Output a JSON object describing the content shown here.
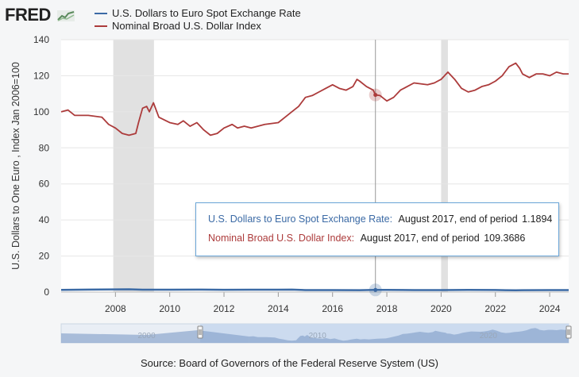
{
  "header": {
    "logo_text": "FRED",
    "logo_icon": "chart-line-icon"
  },
  "legend": [
    {
      "label": "U.S. Dollars to Euro Spot Exchange Rate",
      "color": "#3b6aa5"
    },
    {
      "label": "Nominal Broad U.S. Dollar Index",
      "color": "#ac3b3b"
    }
  ],
  "tooltip": {
    "series1_name": "U.S. Dollars to Euro Spot Exchange Rate:",
    "series1_desc": "August 2017, end of period",
    "series1_value": "1.1894",
    "series2_name": "Nominal Broad U.S. Dollar Index:",
    "series2_desc": "August 2017, end of period",
    "series2_value": "109.3686"
  },
  "source": "Source: Board of Governors of the Federal Reserve System (US)",
  "chart_data": {
    "type": "line",
    "xlabel": "",
    "ylabel": "U.S. Dollars to One Euro , Index Jan 2006=100",
    "ylim": [
      0,
      140
    ],
    "yticks": [
      0,
      20,
      40,
      60,
      80,
      100,
      120,
      140
    ],
    "xlim": [
      2006.0,
      2024.7
    ],
    "xticks": [
      "2008",
      "2010",
      "2012",
      "2014",
      "2016",
      "2018",
      "2020",
      "2022",
      "2024"
    ],
    "grid": true,
    "legend_position": "top-left",
    "recessions": [
      [
        2007.92,
        2009.42
      ],
      [
        2020.0,
        2020.25
      ]
    ],
    "highlight": {
      "x": 2017.58,
      "label": "August 2017"
    },
    "navigator_labels": [
      "2000",
      "2010",
      "2020"
    ],
    "series": [
      {
        "name": "U.S. Dollars to Euro Spot Exchange Rate",
        "color": "#3b6aa5",
        "x": [
          2006.0,
          2007.0,
          2008.0,
          2008.5,
          2009.0,
          2010.0,
          2011.0,
          2012.0,
          2013.0,
          2014.0,
          2014.5,
          2015.0,
          2016.0,
          2017.0,
          2017.58,
          2018.0,
          2019.0,
          2020.0,
          2021.0,
          2022.0,
          2022.75,
          2023.0,
          2024.0,
          2024.7
        ],
        "values": [
          1.2,
          1.37,
          1.47,
          1.56,
          1.3,
          1.33,
          1.39,
          1.29,
          1.33,
          1.33,
          1.36,
          1.11,
          1.1,
          1.06,
          1.19,
          1.23,
          1.12,
          1.12,
          1.22,
          1.13,
          0.98,
          1.07,
          1.09,
          1.1
        ]
      },
      {
        "name": "Nominal Broad U.S. Dollar Index",
        "color": "#ac3b3b",
        "x": [
          2006.0,
          2006.25,
          2006.5,
          2007.0,
          2007.5,
          2007.75,
          2008.0,
          2008.25,
          2008.5,
          2008.75,
          2008.85,
          2009.0,
          2009.15,
          2009.25,
          2009.4,
          2009.6,
          2010.0,
          2010.3,
          2010.5,
          2010.75,
          2011.0,
          2011.25,
          2011.5,
          2011.75,
          2012.0,
          2012.3,
          2012.5,
          2012.75,
          2013.0,
          2013.5,
          2014.0,
          2014.25,
          2014.5,
          2014.75,
          2015.0,
          2015.25,
          2015.5,
          2015.75,
          2016.0,
          2016.25,
          2016.5,
          2016.75,
          2016.9,
          2017.0,
          2017.25,
          2017.5,
          2017.58,
          2017.75,
          2018.0,
          2018.25,
          2018.5,
          2018.75,
          2019.0,
          2019.5,
          2019.75,
          2020.0,
          2020.25,
          2020.5,
          2020.75,
          2021.0,
          2021.25,
          2021.5,
          2021.75,
          2022.0,
          2022.25,
          2022.5,
          2022.75,
          2022.9,
          2023.0,
          2023.25,
          2023.5,
          2023.75,
          2024.0,
          2024.25,
          2024.5,
          2024.7
        ],
        "values": [
          100,
          101,
          98,
          98,
          97,
          93,
          91,
          88,
          87,
          88,
          94,
          102,
          103,
          100,
          105,
          97,
          94,
          93,
          95,
          92,
          94,
          90,
          87,
          88,
          91,
          93,
          91,
          92,
          91,
          93,
          94,
          97,
          100,
          103,
          108,
          109,
          111,
          113,
          115,
          113,
          112,
          114,
          118,
          117,
          114,
          112,
          109.37,
          109,
          106,
          108,
          112,
          114,
          116,
          115,
          116,
          118,
          122,
          118,
          113,
          111,
          112,
          114,
          115,
          117,
          120,
          125,
          127,
          124,
          121,
          119,
          121,
          121,
          120,
          122,
          121,
          121
        ]
      }
    ]
  }
}
